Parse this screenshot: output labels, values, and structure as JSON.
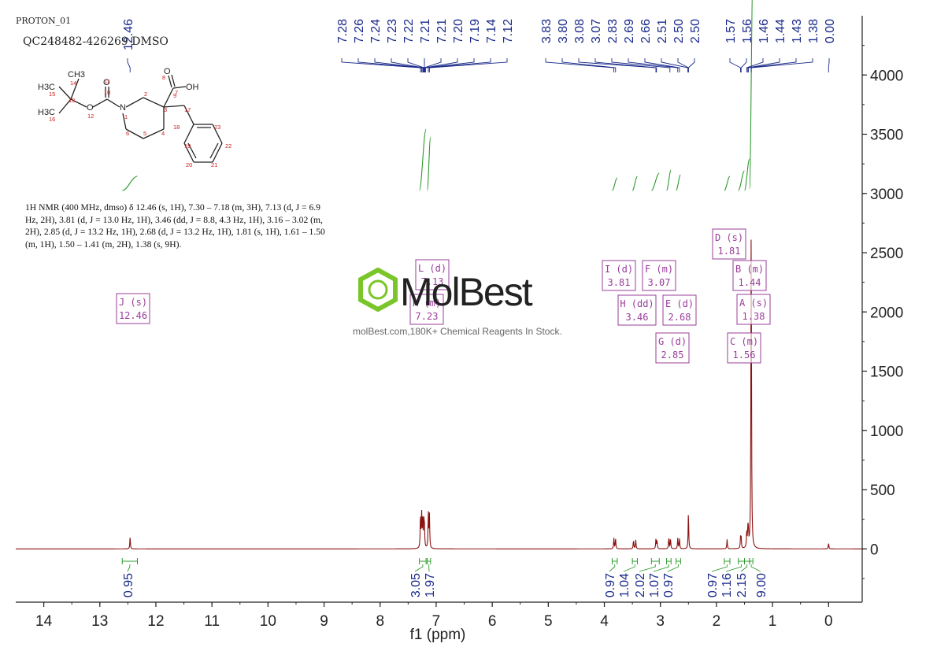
{
  "header": {
    "spectrum_name": "PROTON_01",
    "sample_name": "QC248482-426269 DMSO"
  },
  "watermark": {
    "logo_text": "MolBest",
    "tagline": "molBest.com,180K+ Chemical Reagents In Stock."
  },
  "nmr_description": "1H NMR (400 MHz, dmso) δ 12.46 (s, 1H), 7.30 – 7.18 (m, 3H), 7.13 (d, J = 6.9 Hz, 2H), 3.81 (d, J = 13.0 Hz, 1H), 3.46 (dd, J = 8.8, 4.3 Hz, 1H), 3.16 – 3.02 (m, 2H), 2.85 (d, J = 13.2 Hz, 1H), 2.68 (d, J = 13.2 Hz, 1H), 1.81 (s, 1H), 1.61 – 1.50 (m, 1H), 1.50 – 1.41 (m, 2H), 1.38 (s, 9H).",
  "molecule": {
    "atoms": [
      "CH3",
      "H3C",
      "H3C",
      "O",
      "O",
      "N",
      "O",
      "OH"
    ],
    "atom_numbers": [
      "14",
      "15",
      "16",
      "13",
      "12",
      "11",
      "10",
      "1",
      "2",
      "3",
      "4",
      "5",
      "6",
      "7",
      "8",
      "9",
      "17",
      "18",
      "19",
      "20",
      "21",
      "22",
      "23"
    ]
  },
  "chart_data": {
    "type": "line",
    "xlabel": "f1 (ppm)",
    "ylabel": "",
    "xlim": [
      14.5,
      -0.6
    ],
    "ylim": [
      -450,
      4500
    ],
    "x_ticks": [
      14,
      13,
      12,
      11,
      10,
      9,
      8,
      7,
      6,
      5,
      4,
      3,
      2,
      1,
      0
    ],
    "y_ticks": [
      0,
      500,
      1000,
      1500,
      2000,
      2500,
      3000,
      3500,
      4000
    ],
    "peak_labels": [
      "12.46",
      "7.28",
      "7.26",
      "7.24",
      "7.23",
      "7.22",
      "7.21",
      "7.21",
      "7.20",
      "7.19",
      "7.14",
      "7.12",
      "3.83",
      "3.80",
      "3.08",
      "3.07",
      "2.83",
      "2.69",
      "2.66",
      "2.51",
      "2.50",
      "2.50",
      "1.57",
      "1.56",
      "1.46",
      "1.44",
      "1.43",
      "1.38",
      "0.00"
    ],
    "peaks": [
      {
        "ppm": 12.46,
        "height": 100
      },
      {
        "ppm": 7.28,
        "height": 280
      },
      {
        "ppm": 7.26,
        "height": 300
      },
      {
        "ppm": 7.24,
        "height": 220
      },
      {
        "ppm": 7.22,
        "height": 200
      },
      {
        "ppm": 7.21,
        "height": 180
      },
      {
        "ppm": 7.14,
        "height": 300
      },
      {
        "ppm": 7.12,
        "height": 280
      },
      {
        "ppm": 3.83,
        "height": 90
      },
      {
        "ppm": 3.8,
        "height": 90
      },
      {
        "ppm": 3.48,
        "height": 75
      },
      {
        "ppm": 3.44,
        "height": 75
      },
      {
        "ppm": 3.08,
        "height": 80
      },
      {
        "ppm": 3.06,
        "height": 70
      },
      {
        "ppm": 2.85,
        "height": 95
      },
      {
        "ppm": 2.82,
        "height": 90
      },
      {
        "ppm": 2.69,
        "height": 90
      },
      {
        "ppm": 2.66,
        "height": 85
      },
      {
        "ppm": 2.5,
        "height": 310
      },
      {
        "ppm": 1.81,
        "height": 80
      },
      {
        "ppm": 1.57,
        "height": 85
      },
      {
        "ppm": 1.56,
        "height": 90
      },
      {
        "ppm": 1.46,
        "height": 140
      },
      {
        "ppm": 1.44,
        "height": 150
      },
      {
        "ppm": 1.43,
        "height": 120
      },
      {
        "ppm": 1.38,
        "height": 2860
      },
      {
        "ppm": 0.0,
        "height": 50
      }
    ],
    "integrals": [
      {
        "from": 12.6,
        "to": 12.33,
        "value": "0.95"
      },
      {
        "from": 7.3,
        "to": 7.18,
        "value": "3.05"
      },
      {
        "from": 7.16,
        "to": 7.1,
        "value": "1.97"
      },
      {
        "from": 3.86,
        "to": 3.77,
        "value": "0.97"
      },
      {
        "from": 3.5,
        "to": 3.41,
        "value": "1.04"
      },
      {
        "from": 3.16,
        "to": 3.02,
        "value": "2.02"
      },
      {
        "from": 2.89,
        "to": 2.81,
        "value": "1.07"
      },
      {
        "from": 2.72,
        "to": 2.64,
        "value": "0.97"
      },
      {
        "from": 1.86,
        "to": 1.76,
        "value": "0.97"
      },
      {
        "from": 1.61,
        "to": 1.5,
        "value": "1.16"
      },
      {
        "from": 1.5,
        "to": 1.41,
        "value": "2.15"
      },
      {
        "from": 1.41,
        "to": 1.35,
        "value": "9.00"
      }
    ],
    "multiplets": [
      {
        "letter": "J",
        "type": "s",
        "ppm": "12.46"
      },
      {
        "letter": "L",
        "type": "d",
        "ppm": "7.13"
      },
      {
        "letter": "K",
        "type": "m",
        "ppm": "7.23"
      },
      {
        "letter": "I",
        "type": "d",
        "ppm": "3.81"
      },
      {
        "letter": "H",
        "type": "dd",
        "ppm": "3.46"
      },
      {
        "letter": "F",
        "type": "m",
        "ppm": "3.07"
      },
      {
        "letter": "G",
        "type": "d",
        "ppm": "2.85"
      },
      {
        "letter": "E",
        "type": "d",
        "ppm": "2.68"
      },
      {
        "letter": "D",
        "type": "s",
        "ppm": "1.81"
      },
      {
        "letter": "C",
        "type": "m",
        "ppm": "1.56"
      },
      {
        "letter": "B",
        "type": "m",
        "ppm": "1.44"
      },
      {
        "letter": "A",
        "type": "s",
        "ppm": "1.38"
      }
    ],
    "colors": {
      "spectrum": "#8b1010",
      "integral": "#2e9a2e",
      "peak_label": "#1a2a8a",
      "multiplet_box": "#9a3c9a",
      "axis": "#222222"
    }
  }
}
